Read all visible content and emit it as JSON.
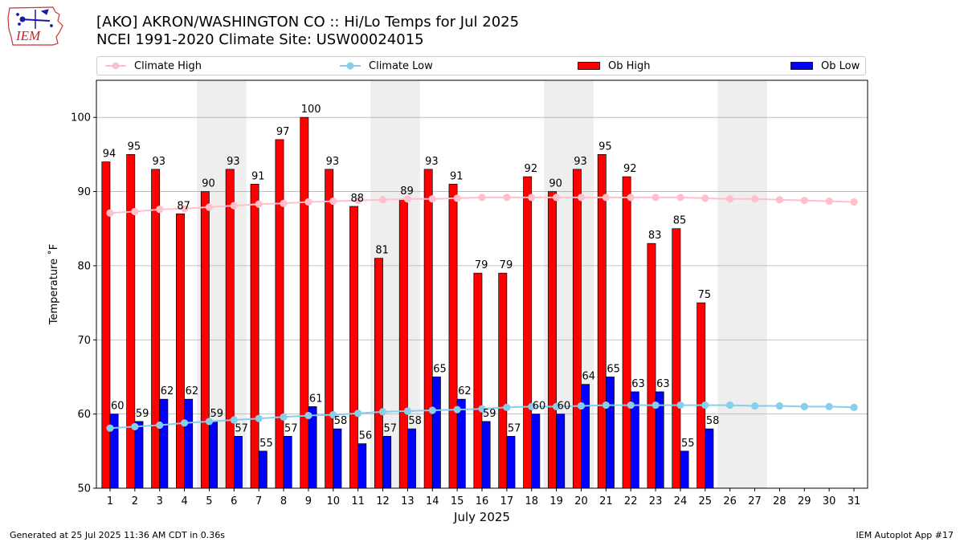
{
  "header": {
    "title_line1": "[AKO] AKRON/WASHINGTON CO :: Hi/Lo Temps for Jul 2025",
    "title_line2": "NCEI 1991-2020 Climate Site: USW00024015",
    "logo_text": "IEM"
  },
  "footer": {
    "generated": "Generated at 25 Jul 2025 11:36 AM CDT in 0.36s",
    "app": "IEM Autoplot App #17"
  },
  "colors": {
    "ob_high": "#ff0000",
    "ob_low": "#0000ff",
    "climate_high": "#ffc0cb",
    "climate_low": "#87ceeb",
    "weekend_shade": "#eeeeee",
    "grid": "#b0b0b0"
  },
  "chart_data": {
    "type": "bar",
    "title": "[AKO] AKRON/WASHINGTON CO :: Hi/Lo Temps for Jul 2025",
    "xlabel": "July 2025",
    "ylabel": "Temperature ˚F",
    "ylim": [
      50,
      105
    ],
    "yticks": [
      50,
      60,
      70,
      80,
      90,
      100
    ],
    "grid": "y",
    "categories": [
      "1",
      "2",
      "3",
      "4",
      "5",
      "6",
      "7",
      "8",
      "9",
      "10",
      "11",
      "12",
      "13",
      "14",
      "15",
      "16",
      "17",
      "18",
      "19",
      "20",
      "21",
      "22",
      "23",
      "24",
      "25",
      "26",
      "27",
      "28",
      "29",
      "30",
      "31"
    ],
    "shaded_day_pairs": [
      [
        5,
        6
      ],
      [
        12,
        13
      ],
      [
        19,
        20
      ],
      [
        26,
        27
      ]
    ],
    "legend": [
      "Climate High",
      "Climate Low",
      "Ob High",
      "Ob Low"
    ],
    "series": [
      {
        "name": "Ob High",
        "kind": "bar",
        "values": [
          94,
          95,
          93,
          87,
          90,
          93,
          91,
          97,
          100,
          93,
          88,
          81,
          89,
          93,
          91,
          79,
          79,
          92,
          90,
          93,
          95,
          92,
          83,
          85,
          75,
          null,
          null,
          null,
          null,
          null,
          null
        ]
      },
      {
        "name": "Ob Low",
        "kind": "bar",
        "values": [
          60,
          59,
          62,
          62,
          59,
          57,
          55,
          57,
          61,
          58,
          56,
          57,
          58,
          65,
          62,
          59,
          57,
          60,
          60,
          64,
          65,
          63,
          63,
          55,
          58,
          null,
          null,
          null,
          null,
          null,
          null
        ]
      },
      {
        "name": "Climate High",
        "kind": "line",
        "values": [
          87.1,
          87.3,
          87.6,
          87.7,
          87.9,
          88.1,
          88.3,
          88.4,
          88.6,
          88.7,
          88.8,
          88.9,
          89.0,
          89.0,
          89.1,
          89.2,
          89.2,
          89.2,
          89.2,
          89.2,
          89.2,
          89.2,
          89.2,
          89.2,
          89.1,
          89.0,
          89.0,
          88.9,
          88.8,
          88.7,
          88.6
        ]
      },
      {
        "name": "Climate Low",
        "kind": "line",
        "values": [
          58.1,
          58.3,
          58.5,
          58.8,
          59.0,
          59.2,
          59.4,
          59.6,
          59.8,
          59.9,
          60.1,
          60.3,
          60.4,
          60.5,
          60.6,
          60.7,
          60.9,
          61.0,
          61.0,
          61.1,
          61.2,
          61.2,
          61.2,
          61.2,
          61.2,
          61.2,
          61.1,
          61.1,
          61.0,
          61.0,
          60.9
        ]
      }
    ]
  }
}
